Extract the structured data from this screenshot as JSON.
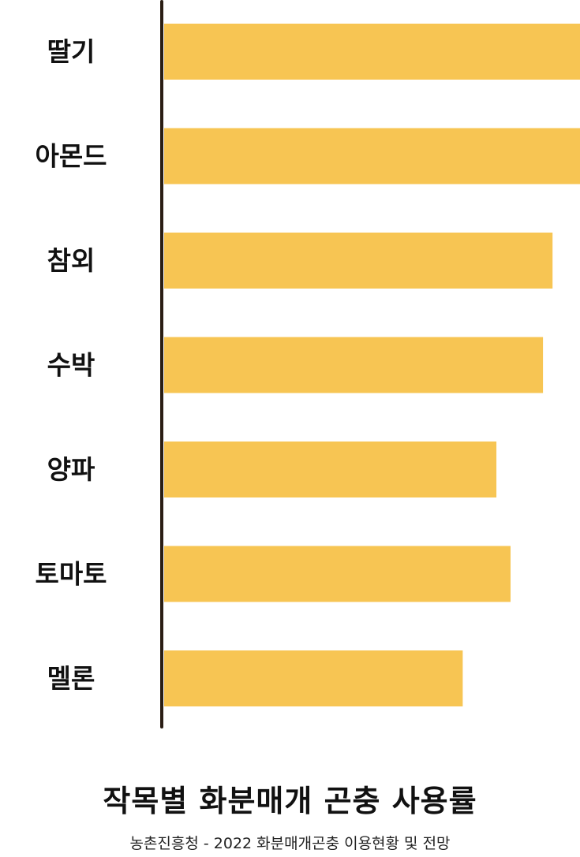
{
  "chart_data": {
    "type": "bar",
    "orientation": "horizontal",
    "title": "작목별 화분매개 곤충 사용률",
    "subtitle": "농촌진흥청 - 2022 화분매개곤충 이용현황 및 전망",
    "categories": [
      "딸기",
      "아몬드",
      "참외",
      "수박",
      "양파",
      "토마토",
      "멜론"
    ],
    "values": [
      100,
      100,
      93.4,
      91.1,
      79.9,
      83.3,
      71.8
    ],
    "xlim": [
      0,
      100
    ],
    "grid": false,
    "bar_color": "#F7C553",
    "axis_color": "#2A1E14"
  }
}
